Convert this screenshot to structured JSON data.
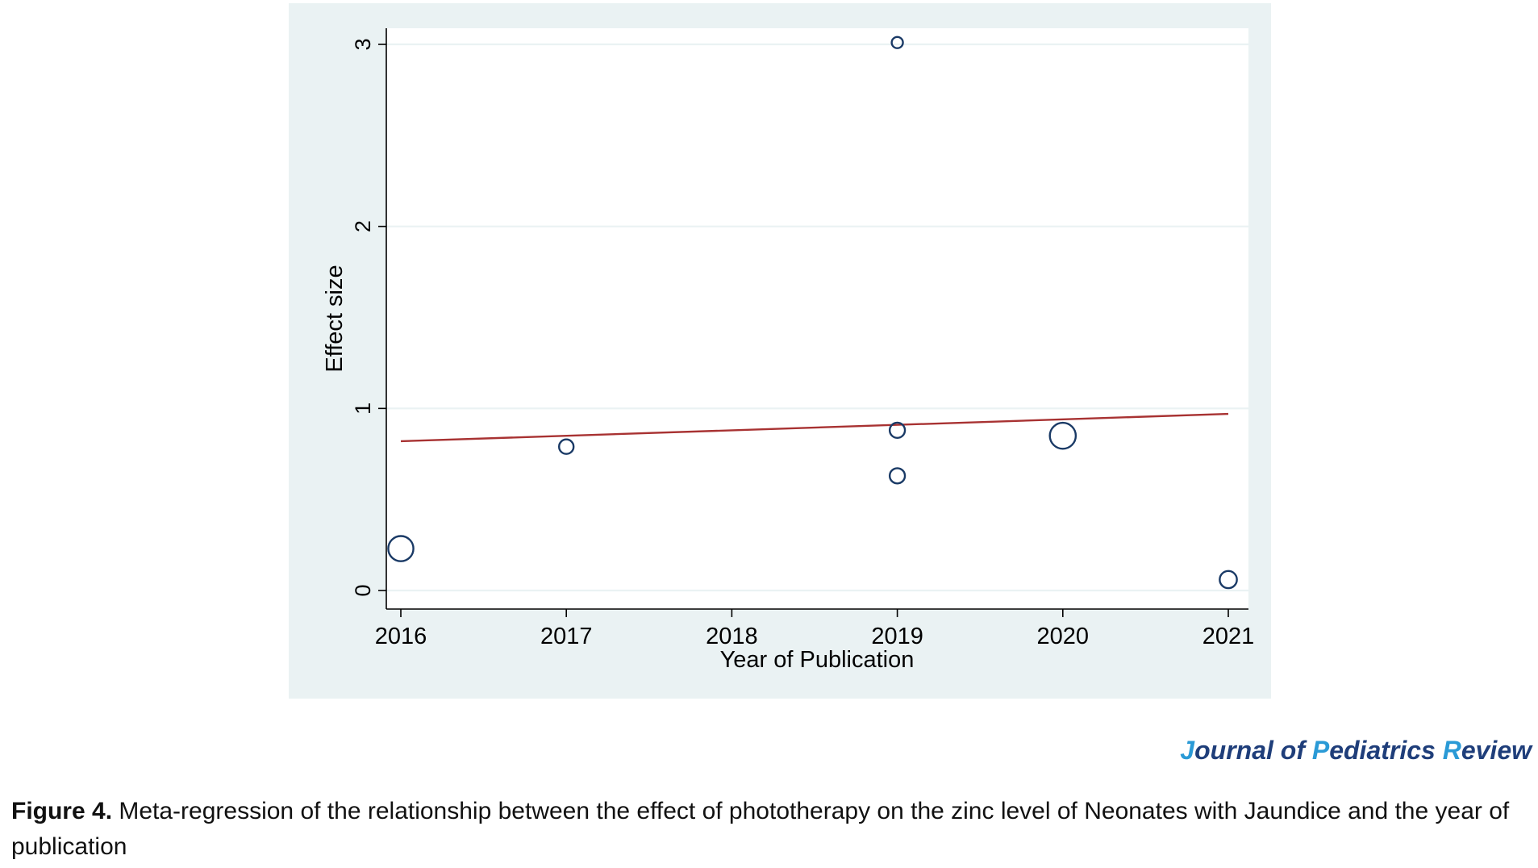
{
  "chart_data": {
    "type": "scatter",
    "xlabel": "Year of Publication",
    "ylabel": "Effect size",
    "xlim": [
      2016,
      2021
    ],
    "ylim": [
      0,
      3
    ],
    "x_ticks": [
      2016,
      2017,
      2018,
      2019,
      2020,
      2021
    ],
    "y_ticks": [
      0,
      1,
      2,
      3
    ],
    "grid": "horizontal",
    "points": [
      {
        "x": 2016,
        "y": 0.23,
        "weight": 3.0
      },
      {
        "x": 2017,
        "y": 0.79,
        "weight": 1.0
      },
      {
        "x": 2019,
        "y": 3.01,
        "weight": 0.6
      },
      {
        "x": 2019,
        "y": 0.88,
        "weight": 1.1
      },
      {
        "x": 2019,
        "y": 0.63,
        "weight": 1.1
      },
      {
        "x": 2020,
        "y": 0.85,
        "weight": 3.2
      },
      {
        "x": 2021,
        "y": 0.06,
        "weight": 1.4
      }
    ],
    "fit_line": {
      "x": [
        2016,
        2021
      ],
      "y": [
        0.82,
        0.97
      ]
    },
    "colors": {
      "marker": "#1a3a66",
      "fit": "#a83232",
      "grid": "#eaf2f3",
      "background": "#eaf2f3"
    }
  },
  "journal": {
    "p1": "J",
    "p2": "ournal of ",
    "p3": "P",
    "p4": "ediatrics ",
    "p5": "R",
    "p6": "eview"
  },
  "caption": {
    "label": "Figure 4.",
    "text": " Meta-regression of the relationship between the effect of phototherapy on the zinc level of Neonates with Jaundice and the year of publication"
  }
}
